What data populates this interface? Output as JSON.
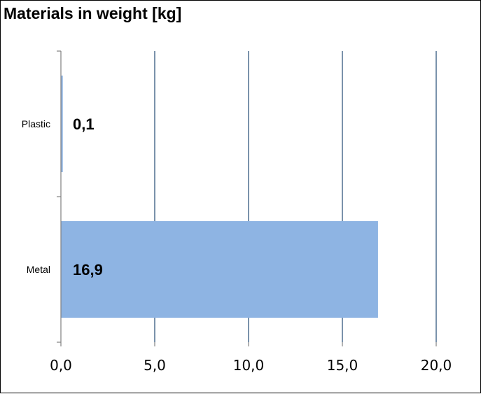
{
  "chart_data": {
    "type": "bar",
    "orientation": "horizontal",
    "title": "Materials in weight [kg]",
    "categories": [
      "Plastic",
      "Metal"
    ],
    "values": [
      0.1,
      16.9
    ],
    "data_labels": [
      "0,1",
      "16,9"
    ],
    "xlim": [
      0,
      20
    ],
    "xticks": [
      0,
      5,
      10,
      15,
      20
    ],
    "xtick_labels": [
      "0,0",
      "5,0",
      "10,0",
      "15,0",
      "20,0"
    ],
    "xlabel": "",
    "ylabel": "",
    "grid": "vertical",
    "legend": "none",
    "colors": {
      "bar": "#8EB4E3",
      "gridline": "#4F6F8F",
      "axis": "#808080"
    }
  }
}
